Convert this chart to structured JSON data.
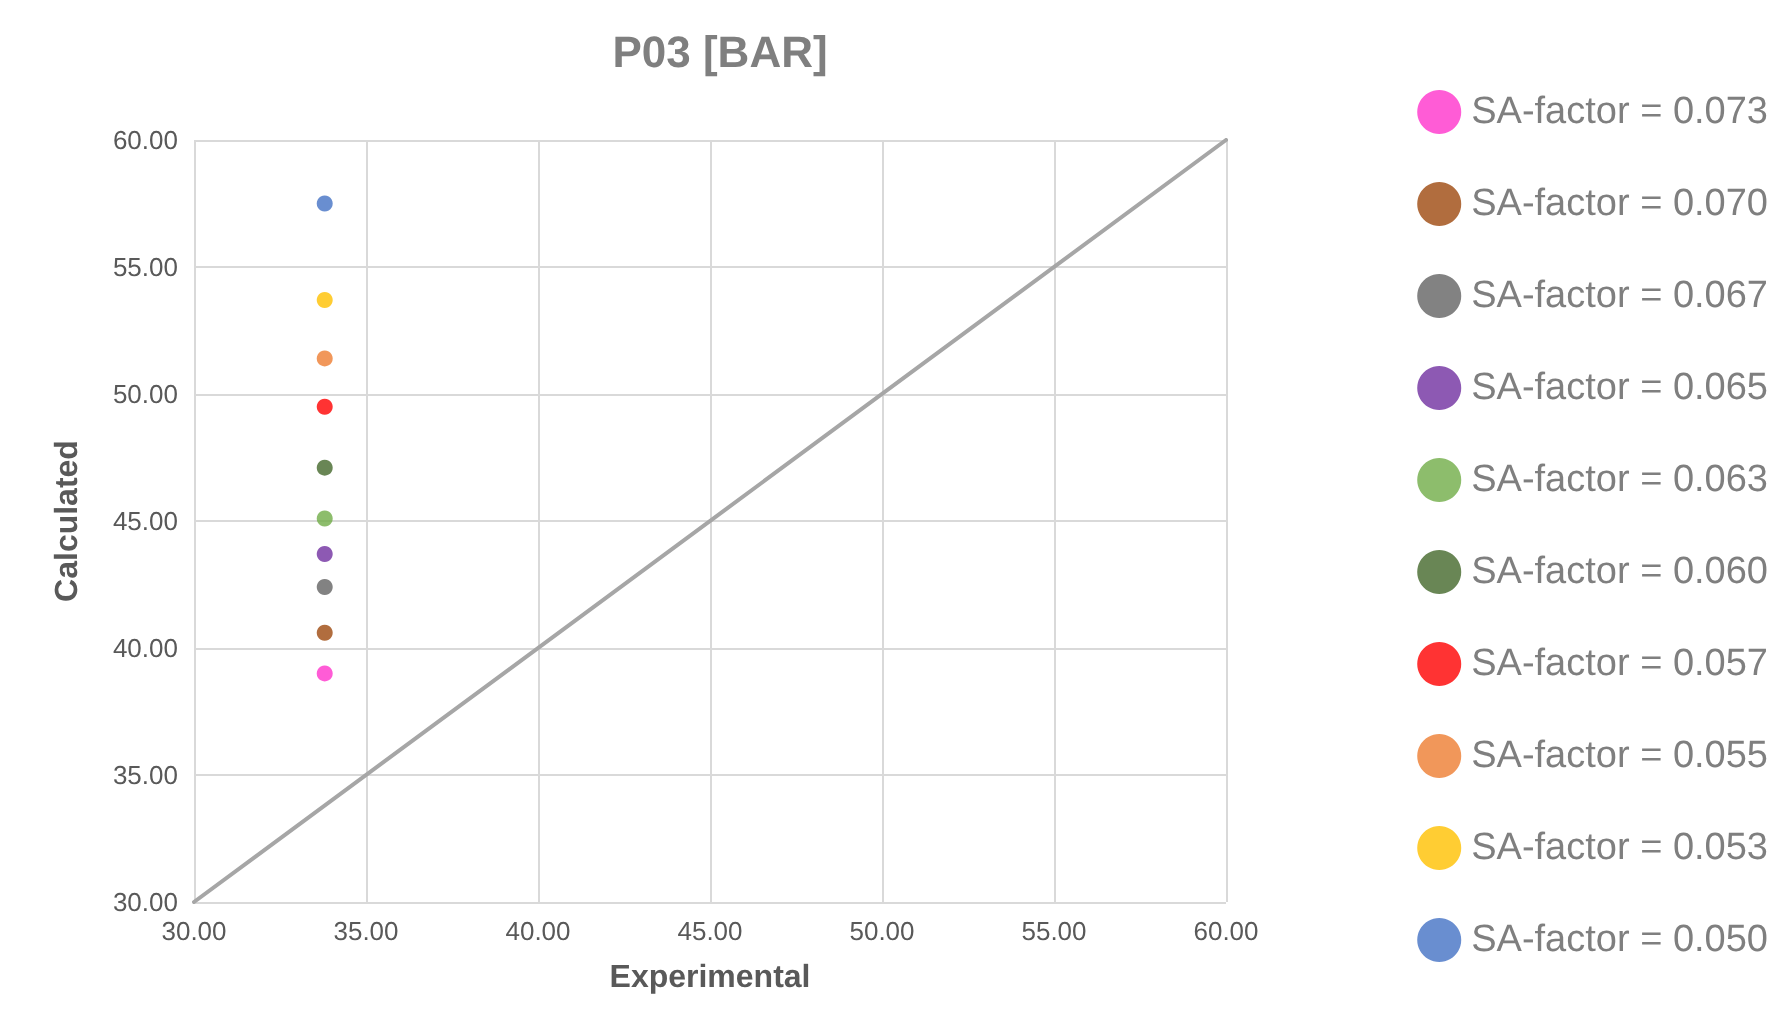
{
  "chart_data": {
    "type": "scatter",
    "title": "P03 [BAR]",
    "xlabel": "Experimental",
    "ylabel": "Calculated",
    "xlim": [
      30,
      60
    ],
    "xticks": [
      {
        "value": 30,
        "label": "30.00"
      },
      {
        "value": 35,
        "label": "35.00"
      },
      {
        "value": 40,
        "label": "40.00"
      },
      {
        "value": 45,
        "label": "45.00"
      },
      {
        "value": 50,
        "label": "50.00"
      },
      {
        "value": 55,
        "label": "55.00"
      },
      {
        "value": 60,
        "label": "60.00"
      }
    ],
    "ylim": [
      30,
      60
    ],
    "yticks": [
      {
        "value": 30,
        "label": "30.00"
      },
      {
        "value": 35,
        "label": "35.00"
      },
      {
        "value": 40,
        "label": "40.00"
      },
      {
        "value": 45,
        "label": "45.00"
      },
      {
        "value": 50,
        "label": "50.00"
      },
      {
        "value": 55,
        "label": "55.00"
      },
      {
        "value": 60,
        "label": "60.00"
      }
    ],
    "grid": true,
    "legend": "right",
    "marker": "circle",
    "series": [
      {
        "name": "SA-factor = 0.073",
        "color": "#ff33cc",
        "x": [
          33.8
        ],
        "values": [
          39.0
        ]
      },
      {
        "name": "SA-factor = 0.070",
        "color": "#9e480e",
        "x": [
          33.8
        ],
        "values": [
          40.6
        ]
      },
      {
        "name": "SA-factor = 0.067",
        "color": "#636363",
        "x": [
          33.8
        ],
        "values": [
          42.4
        ]
      },
      {
        "name": "SA-factor = 0.065",
        "color": "#7030a0",
        "x": [
          33.8
        ],
        "values": [
          43.7
        ]
      },
      {
        "name": "SA-factor = 0.063",
        "color": "#70ad47",
        "x": [
          33.8
        ],
        "values": [
          45.1
        ]
      },
      {
        "name": "SA-factor = 0.060",
        "color": "#43682b",
        "x": [
          33.8
        ],
        "values": [
          47.1
        ]
      },
      {
        "name": "SA-factor = 0.057",
        "color": "#ff0000",
        "x": [
          33.8
        ],
        "values": [
          49.5
        ]
      },
      {
        "name": "SA-factor = 0.055",
        "color": "#ed7d31",
        "x": [
          33.8
        ],
        "values": [
          51.4
        ]
      },
      {
        "name": "SA-factor = 0.053",
        "color": "#ffc000",
        "x": [
          33.8
        ],
        "values": [
          53.7
        ]
      },
      {
        "name": "SA-factor = 0.050",
        "color": "#4472c4",
        "x": [
          33.8
        ],
        "values": [
          57.5
        ]
      },
      {
        "type": "line",
        "color": "#a6a6a6",
        "x": [
          30,
          60
        ],
        "values": [
          30,
          60
        ],
        "marker": "none"
      }
    ]
  }
}
